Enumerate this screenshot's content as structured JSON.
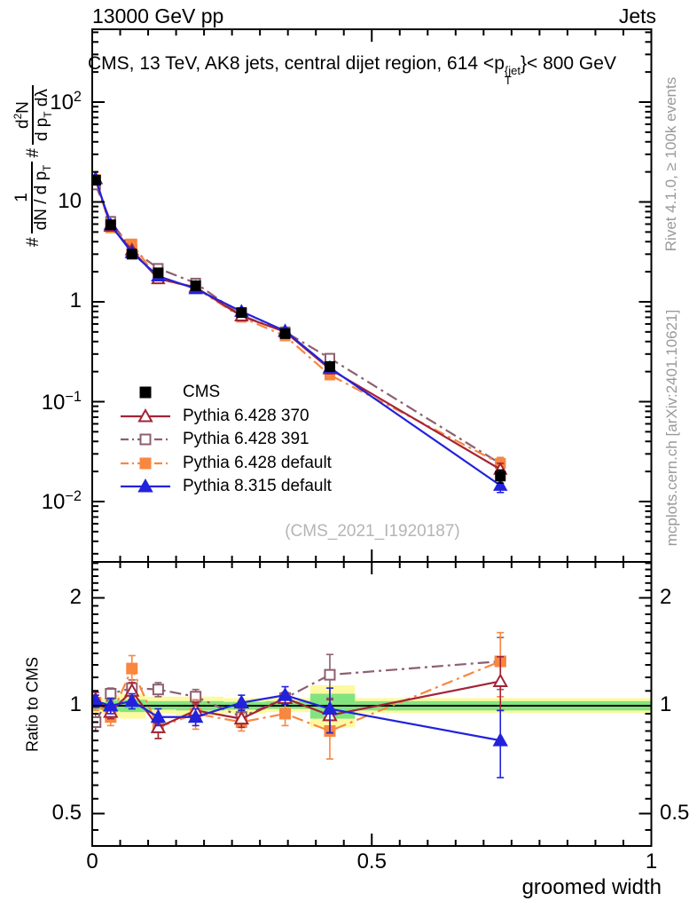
{
  "header": {
    "left": "13000 GeV pp",
    "right": "Jets"
  },
  "title": {
    "pre": "CMS, 13 TeV, AK8 jets, central dijet region, 614 <p",
    "sup": "{jet",
    "sub": "T",
    "post": "}< 800 GeV"
  },
  "ylabel": {
    "hash1": "#",
    "frac1_num": "1",
    "frac1_den_pre": "dN / d p",
    "frac1_den_sub": "T",
    "hash2": "#",
    "frac2_num_pre": "d",
    "frac2_num_sup": "2",
    "frac2_num_post": "N",
    "frac2_den_pre": "d p",
    "frac2_den_sub": "T",
    "frac2_den_post": " dλ"
  },
  "ratio_ylabel": "Ratio to CMS",
  "xlabel": "groomed width",
  "watermark": "(CMS_2021_I1920187)",
  "side_notes": {
    "rivet": "Rivet 4.1.0, ≥ 100k events",
    "mcplots": "mcplots.cern.ch [arXiv:2401.10621]"
  },
  "legend": {
    "items": [
      {
        "label": "CMS",
        "marker": "square-filled",
        "color": "#000000",
        "line": "none"
      },
      {
        "label": "Pythia 6.428 370",
        "marker": "triangle-open",
        "color": "#a32437",
        "line": "solid"
      },
      {
        "label": "Pythia 6.428 391",
        "marker": "square-open",
        "color": "#8d5f70",
        "line": "dashdot"
      },
      {
        "label": "Pythia 6.428 default",
        "marker": "square-filled",
        "color": "#f8873f",
        "line": "dashdot"
      },
      {
        "label": "Pythia 8.315 default",
        "marker": "triangle-filled",
        "color": "#2222dd",
        "line": "solid"
      }
    ]
  },
  "chart_data": {
    "type": "line",
    "title": "CMS, 13 TeV, AK8 jets, central dijet region, 614 < pT(jet) < 800 GeV",
    "xlabel": "groomed width",
    "x": [
      0.006,
      0.033,
      0.071,
      0.118,
      0.185,
      0.267,
      0.345,
      0.425,
      0.73
    ],
    "xticks": [
      0,
      0.5,
      1
    ],
    "xminor_step": 0.05,
    "xlim": [
      0,
      1
    ],
    "main": {
      "yscale": "log10",
      "ylim": [
        0.0025,
        540
      ],
      "yticks": [
        100,
        10,
        1,
        0.1,
        0.01
      ],
      "ylabel": "# 1/(dN/dpT) # d2N/(dpT dlambda)",
      "yerr_frac": [
        0.03,
        0.03,
        0.04,
        0.04,
        0.04,
        0.05,
        0.06,
        0.1,
        0.15
      ],
      "series": [
        {
          "name": "Pythia 6.428 391",
          "color": "#8d5f70",
          "marker": "square-open",
          "line": "dashdot",
          "values": [
            14.8,
            6.4,
            3.35,
            2.16,
            1.54,
            0.73,
            0.5,
            0.272,
            0.024
          ]
        },
        {
          "name": "Pythia 6.428 default",
          "color": "#f8873f",
          "marker": "square-filled",
          "line": "dashdot",
          "values": [
            16.8,
            5.5,
            3.8,
            1.7,
            1.38,
            0.7,
            0.455,
            0.185,
            0.024
          ]
        },
        {
          "name": "Pythia 6.428 370",
          "color": "#a32437",
          "marker": "triangle-open",
          "line": "solid",
          "values": [
            17.2,
            5.7,
            3.3,
            1.7,
            1.4,
            0.72,
            0.5,
            0.212,
            0.021
          ]
        },
        {
          "name": "Pythia 8.315 default",
          "color": "#2222dd",
          "marker": "triangle-filled",
          "line": "solid",
          "values": [
            17.0,
            5.9,
            3.1,
            1.81,
            1.35,
            0.8,
            0.51,
            0.219,
            0.0145
          ]
        },
        {
          "name": "CMS",
          "color": "#000000",
          "marker": "square-filled",
          "line": "none",
          "values": [
            16.5,
            5.9,
            3.0,
            1.95,
            1.45,
            0.78,
            0.48,
            0.225,
            0.018
          ]
        }
      ]
    },
    "ratio": {
      "yscale": "log2",
      "ylim": [
        0.406,
        2.52
      ],
      "yticks": [
        2,
        1,
        0.5
      ],
      "ylabel": "Ratio to CMS",
      "reference": 1,
      "bands": {
        "yellow_color": "#fdf9a1",
        "green_color": "#82e47f",
        "yellow": [
          {
            "x0": 0.0,
            "x1": 0.025,
            "lo": 0.95,
            "hi": 1.05
          },
          {
            "x0": 0.025,
            "x1": 0.05,
            "lo": 0.93,
            "hi": 1.07
          },
          {
            "x0": 0.05,
            "x1": 0.095,
            "lo": 0.92,
            "hi": 1.08
          },
          {
            "x0": 0.095,
            "x1": 0.15,
            "lo": 0.95,
            "hi": 1.06
          },
          {
            "x0": 0.15,
            "x1": 0.235,
            "lo": 0.94,
            "hi": 1.06
          },
          {
            "x0": 0.235,
            "x1": 0.31,
            "lo": 0.95,
            "hi": 1.05
          },
          {
            "x0": 0.31,
            "x1": 0.39,
            "lo": 0.96,
            "hi": 1.05
          },
          {
            "x0": 0.39,
            "x1": 0.47,
            "lo": 0.87,
            "hi": 1.14
          },
          {
            "x0": 0.47,
            "x1": 1.0,
            "lo": 0.955,
            "hi": 1.05
          }
        ],
        "green": [
          {
            "x0": 0.0,
            "x1": 0.025,
            "lo": 0.975,
            "hi": 1.025
          },
          {
            "x0": 0.025,
            "x1": 0.05,
            "lo": 0.965,
            "hi": 1.035
          },
          {
            "x0": 0.05,
            "x1": 0.095,
            "lo": 0.96,
            "hi": 1.04
          },
          {
            "x0": 0.095,
            "x1": 0.15,
            "lo": 0.975,
            "hi": 1.03
          },
          {
            "x0": 0.15,
            "x1": 0.235,
            "lo": 0.97,
            "hi": 1.03
          },
          {
            "x0": 0.235,
            "x1": 0.31,
            "lo": 0.975,
            "hi": 1.025
          },
          {
            "x0": 0.31,
            "x1": 0.39,
            "lo": 0.98,
            "hi": 1.03
          },
          {
            "x0": 0.39,
            "x1": 0.47,
            "lo": 0.92,
            "hi": 1.08
          },
          {
            "x0": 0.47,
            "x1": 1.0,
            "lo": 0.97,
            "hi": 1.03
          }
        ]
      },
      "series": [
        {
          "name": "Pythia 6.428 391",
          "color": "#8d5f70",
          "marker": "square-open",
          "line": "dashdot",
          "values": [
            0.9,
            1.08,
            1.12,
            1.11,
            1.06,
            0.93,
            1.05,
            1.22,
            1.33
          ],
          "err": [
            0.05,
            0.04,
            0.06,
            0.05,
            0.05,
            0.05,
            0.04,
            0.17,
            0.22
          ]
        },
        {
          "name": "Pythia 6.428 default",
          "color": "#f8873f",
          "marker": "square-filled",
          "line": "dashdot",
          "values": [
            1.02,
            0.93,
            1.27,
            0.87,
            0.95,
            0.9,
            0.95,
            0.85,
            1.33
          ],
          "err": [
            0.05,
            0.05,
            0.11,
            0.06,
            0.09,
            0.05,
            0.07,
            0.14,
            0.27
          ]
        },
        {
          "name": "Pythia 6.428 370",
          "color": "#a32437",
          "marker": "triangle-open",
          "line": "solid",
          "values": [
            1.04,
            0.96,
            1.1,
            0.87,
            0.97,
            0.92,
            1.05,
            0.94,
            1.17
          ],
          "err": [
            0.05,
            0.04,
            0.06,
            0.06,
            0.05,
            0.05,
            0.04,
            0.1,
            0.2
          ]
        },
        {
          "name": "Pythia 8.315 default",
          "color": "#2222dd",
          "marker": "triangle-filled",
          "line": "solid",
          "values": [
            1.03,
            1.0,
            1.03,
            0.93,
            0.93,
            1.02,
            1.07,
            0.98,
            0.8
          ],
          "err": [
            0.04,
            0.05,
            0.05,
            0.05,
            0.05,
            0.05,
            0.06,
            0.14,
            0.17
          ]
        }
      ]
    }
  }
}
